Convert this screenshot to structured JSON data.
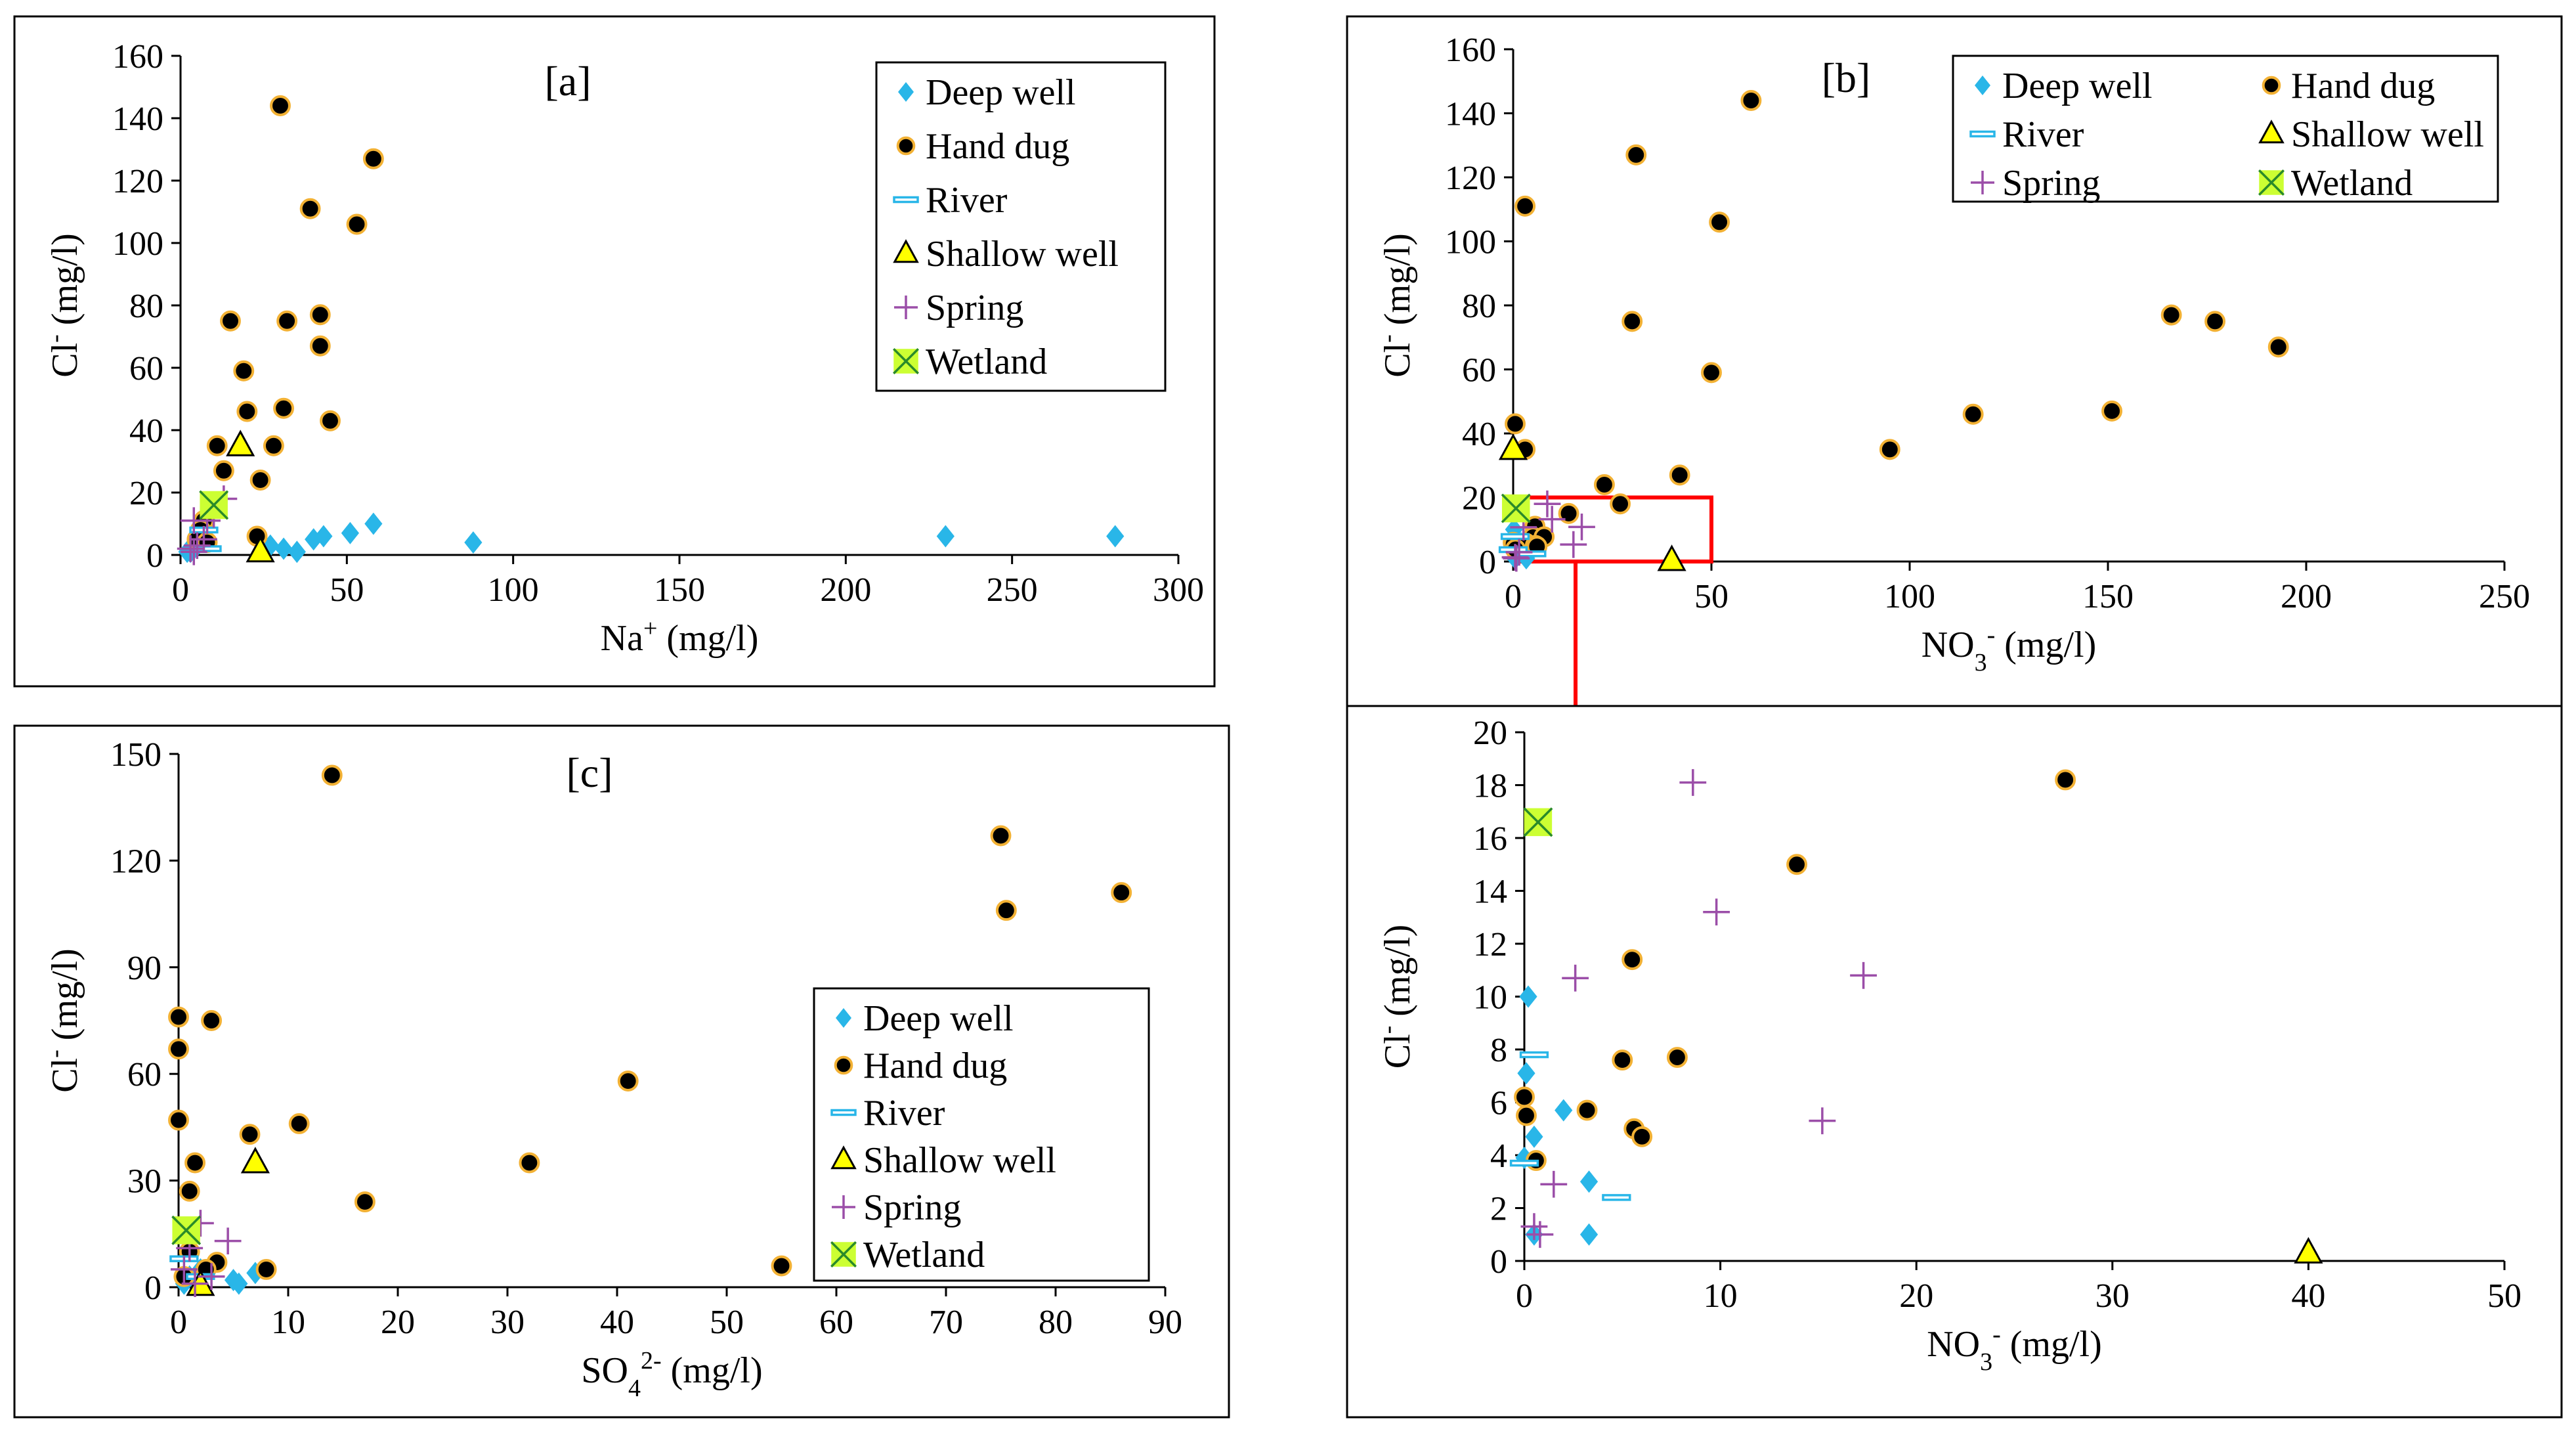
{
  "colors": {
    "deep": "#29b6e8",
    "hand_fill": "#000000",
    "hand_edge": "#f2b134",
    "river": "#29b6e8",
    "shallow": "#ffff00",
    "spring": "#9b4ea8",
    "wetland": "#ccff33",
    "highlight": "#ff0000"
  },
  "chart_data": [
    {
      "id": "a",
      "type": "scatter",
      "panel_label": "[a]",
      "xlabel": {
        "main": "Na",
        "sup": "+",
        "unit": " (mg/l)"
      },
      "ylabel": {
        "main": "Cl",
        "sup": "-",
        "unit": " (mg/l)"
      },
      "xlim": [
        0,
        300
      ],
      "ylim": [
        0,
        160
      ],
      "xticks": [
        "0",
        "50",
        "100",
        "150",
        "200",
        "250",
        "300"
      ],
      "yticks": [
        "0",
        "20",
        "40",
        "60",
        "80",
        "100",
        "120",
        "140",
        "160"
      ],
      "legend": {
        "position": "top-right",
        "columns": 1,
        "entries": [
          "Deep well",
          "Hand dug",
          "River",
          "Shallow well",
          "Spring",
          "Wetland"
        ]
      },
      "series": [
        {
          "name": "Deep well",
          "key": "deep",
          "points": [
            [
              230,
              6
            ],
            [
              281,
              6
            ],
            [
              88,
              4
            ],
            [
              58,
              10
            ],
            [
              51,
              7
            ],
            [
              43,
              6
            ],
            [
              40,
              5
            ],
            [
              35,
              1
            ],
            [
              31,
              2
            ],
            [
              27,
              3
            ],
            [
              5,
              3
            ],
            [
              4,
              2
            ],
            [
              3,
              1
            ],
            [
              2,
              1
            ]
          ]
        },
        {
          "name": "Hand dug",
          "key": "hand",
          "points": [
            [
              30,
              144
            ],
            [
              58,
              127
            ],
            [
              39,
              111
            ],
            [
              53,
              106
            ],
            [
              32,
              75
            ],
            [
              15,
              75
            ],
            [
              42,
              77
            ],
            [
              42,
              67
            ],
            [
              19,
              59
            ],
            [
              31,
              47
            ],
            [
              20,
              46
            ],
            [
              45,
              43
            ],
            [
              11,
              35
            ],
            [
              28,
              35
            ],
            [
              13,
              27
            ],
            [
              24,
              24
            ],
            [
              23,
              6
            ],
            [
              7,
              11
            ],
            [
              6,
              8
            ],
            [
              5,
              5
            ],
            [
              8,
              4
            ]
          ]
        },
        {
          "name": "River",
          "key": "river",
          "points": [
            [
              7,
              8
            ],
            [
              8,
              2
            ]
          ]
        },
        {
          "name": "Shallow well",
          "key": "shallow",
          "points": [
            [
              18,
              35
            ],
            [
              24,
              1
            ]
          ]
        },
        {
          "name": "Spring",
          "key": "spring",
          "points": [
            [
              13,
              18
            ],
            [
              10,
              13
            ],
            [
              4,
              11
            ],
            [
              8,
              11
            ],
            [
              7,
              5
            ],
            [
              5,
              3
            ],
            [
              4,
              1
            ],
            [
              3,
              2
            ]
          ]
        },
        {
          "name": "Wetland",
          "key": "wetland",
          "points": [
            [
              10,
              16
            ]
          ]
        }
      ]
    },
    {
      "id": "b",
      "type": "scatter",
      "panel_label": "[b]",
      "xlabel": {
        "main": "NO",
        "sub": "3",
        "sup": "-",
        "unit": " (mg/l)"
      },
      "ylabel": {
        "main": "Cl",
        "sup": "-",
        "unit": " (mg/l)"
      },
      "xlim": [
        0,
        250
      ],
      "ylim": [
        0,
        160
      ],
      "xticks": [
        "0",
        "50",
        "100",
        "150",
        "200",
        "250"
      ],
      "yticks": [
        "0",
        "20",
        "40",
        "60",
        "80",
        "100",
        "120",
        "140",
        "160"
      ],
      "legend": {
        "position": "top-right",
        "columns": 2,
        "entries": [
          "Deep well",
          "Hand dug",
          "River",
          "Shallow well",
          "Spring",
          "Wetland"
        ]
      },
      "highlight_box": [
        0,
        50,
        0,
        20
      ],
      "series": [
        {
          "name": "Deep well",
          "key": "deep",
          "points": [
            [
              0.2,
              10
            ],
            [
              0.1,
              7
            ],
            [
              0.5,
              4.7
            ],
            [
              2,
              5.7
            ],
            [
              3.3,
              3
            ],
            [
              3.3,
              1
            ],
            [
              0.5,
              1
            ]
          ]
        },
        {
          "name": "Hand dug",
          "key": "hand",
          "points": [
            [
              60,
              144
            ],
            [
              31,
              127
            ],
            [
              3,
              111
            ],
            [
              52,
              106
            ],
            [
              30,
              75
            ],
            [
              166,
              77
            ],
            [
              177,
              75
            ],
            [
              193,
              67
            ],
            [
              50,
              59
            ],
            [
              151,
              47
            ],
            [
              116,
              46
            ],
            [
              0.5,
              43
            ],
            [
              95,
              35
            ],
            [
              3,
              35
            ],
            [
              42,
              27
            ],
            [
              23,
              24
            ],
            [
              27,
              18
            ],
            [
              14,
              15
            ],
            [
              5.5,
              11
            ],
            [
              5,
              7.6
            ],
            [
              7.8,
              7.7
            ],
            [
              0,
              6
            ],
            [
              0.1,
              5.5
            ],
            [
              3.2,
              5.7
            ],
            [
              5.6,
              5
            ],
            [
              6,
              4.7
            ],
            [
              0.6,
              3.8
            ]
          ]
        },
        {
          "name": "River",
          "key": "river",
          "points": [
            [
              0.5,
              7.8
            ],
            [
              4.7,
              2.4
            ],
            [
              0,
              3.7
            ]
          ]
        },
        {
          "name": "Shallow well",
          "key": "shallow",
          "points": [
            [
              0,
              35
            ],
            [
              40,
              0.3
            ]
          ]
        },
        {
          "name": "Spring",
          "key": "spring",
          "points": [
            [
              8.6,
              18
            ],
            [
              9.8,
              13.2
            ],
            [
              2.6,
              10.7
            ],
            [
              17.3,
              10.8
            ],
            [
              15.2,
              5.3
            ],
            [
              1.5,
              2.9
            ],
            [
              0.5,
              1.3
            ],
            [
              0.8,
              1
            ]
          ]
        },
        {
          "name": "Wetland",
          "key": "wetland",
          "points": [
            [
              0.7,
              16.6
            ]
          ]
        }
      ]
    },
    {
      "id": "b-inset",
      "type": "scatter",
      "panel_label": "",
      "xlabel": {
        "main": "NO",
        "sub": "3",
        "sup": "-",
        "unit": " (mg/l)"
      },
      "ylabel": {
        "main": "Cl",
        "sup": "-",
        "unit": " (mg/l)"
      },
      "xlim": [
        0,
        50
      ],
      "ylim": [
        0,
        20
      ],
      "xticks": [
        "0",
        "10",
        "20",
        "30",
        "40",
        "50"
      ],
      "yticks": [
        "0",
        "2",
        "4",
        "6",
        "8",
        "10",
        "12",
        "14",
        "16",
        "18",
        "20"
      ],
      "legend": null,
      "series": [
        {
          "name": "Deep well",
          "key": "deep",
          "points": [
            [
              0.2,
              10
            ],
            [
              0.1,
              7.1
            ],
            [
              0.5,
              4.7
            ],
            [
              2,
              5.7
            ],
            [
              3.3,
              3
            ],
            [
              3.3,
              1
            ],
            [
              0.5,
              1
            ],
            [
              0,
              3.9
            ]
          ]
        },
        {
          "name": "Hand dug",
          "key": "hand",
          "points": [
            [
              27.6,
              18.2
            ],
            [
              13.9,
              15
            ],
            [
              5.5,
              11.4
            ],
            [
              5,
              7.6
            ],
            [
              7.8,
              7.7
            ],
            [
              0,
              6.2
            ],
            [
              0.1,
              5.5
            ],
            [
              3.2,
              5.7
            ],
            [
              5.6,
              5
            ],
            [
              6,
              4.7
            ],
            [
              0.6,
              3.8
            ]
          ]
        },
        {
          "name": "River",
          "key": "river",
          "points": [
            [
              0.5,
              7.8
            ],
            [
              4.7,
              2.4
            ],
            [
              0,
              3.7
            ]
          ]
        },
        {
          "name": "Shallow well",
          "key": "shallow",
          "points": [
            [
              40,
              0.3
            ]
          ]
        },
        {
          "name": "Spring",
          "key": "spring",
          "points": [
            [
              8.6,
              18.1
            ],
            [
              9.8,
              13.2
            ],
            [
              2.6,
              10.7
            ],
            [
              17.3,
              10.8
            ],
            [
              15.2,
              5.3
            ],
            [
              1.5,
              2.9
            ],
            [
              0.5,
              1.3
            ],
            [
              0.8,
              1
            ]
          ]
        },
        {
          "name": "Wetland",
          "key": "wetland",
          "points": [
            [
              0.7,
              16.6
            ]
          ]
        }
      ]
    },
    {
      "id": "c",
      "type": "scatter",
      "panel_label": "[c]",
      "xlabel": {
        "main": "SO",
        "sub": "4",
        "sup": "2-",
        "unit": " (mg/l)"
      },
      "ylabel": {
        "main": "Cl",
        "sup": "-",
        "unit": " (mg/l)"
      },
      "xlim": [
        0,
        90
      ],
      "ylim": [
        0,
        150
      ],
      "xticks": [
        "0",
        "10",
        "20",
        "30",
        "40",
        "50",
        "60",
        "70",
        "80",
        "90"
      ],
      "yticks": [
        "0",
        "30",
        "60",
        "90",
        "120",
        "150"
      ],
      "legend": {
        "position": "right",
        "columns": 1,
        "entries": [
          "Deep well",
          "Hand dug",
          "River",
          "Shallow well",
          "Spring",
          "Wetland"
        ]
      },
      "series": [
        {
          "name": "Deep well",
          "key": "deep",
          "points": [
            [
              5,
              2
            ],
            [
              5.5,
              1
            ],
            [
              7,
              4
            ],
            [
              2,
              5
            ],
            [
              1,
              3
            ],
            [
              0.5,
              1
            ]
          ]
        },
        {
          "name": "Hand dug",
          "key": "hand",
          "points": [
            [
              14,
              144
            ],
            [
              75,
              127
            ],
            [
              86,
              111
            ],
            [
              75.5,
              106
            ],
            [
              0,
              76
            ],
            [
              3,
              75
            ],
            [
              0,
              67
            ],
            [
              41,
              58
            ],
            [
              0,
              47
            ],
            [
              11,
              46
            ],
            [
              6.5,
              43
            ],
            [
              1.5,
              35
            ],
            [
              32,
              35
            ],
            [
              1,
              27
            ],
            [
              17,
              24
            ],
            [
              3.5,
              7
            ],
            [
              8,
              5
            ],
            [
              55,
              6
            ],
            [
              0.5,
              3
            ],
            [
              1,
              10
            ],
            [
              2.5,
              5
            ]
          ]
        },
        {
          "name": "River",
          "key": "river",
          "points": [
            [
              0.5,
              8
            ],
            [
              2,
              3
            ]
          ]
        },
        {
          "name": "Shallow well",
          "key": "shallow",
          "points": [
            [
              7,
              35
            ],
            [
              2,
              0.5
            ]
          ]
        },
        {
          "name": "Spring",
          "key": "spring",
          "points": [
            [
              2,
              18
            ],
            [
              4.5,
              13
            ],
            [
              1,
              11
            ],
            [
              0.5,
              5
            ],
            [
              3,
              3
            ],
            [
              1.5,
              1
            ]
          ]
        },
        {
          "name": "Wetland",
          "key": "wetland",
          "points": [
            [
              0.7,
              16
            ]
          ]
        }
      ]
    }
  ]
}
